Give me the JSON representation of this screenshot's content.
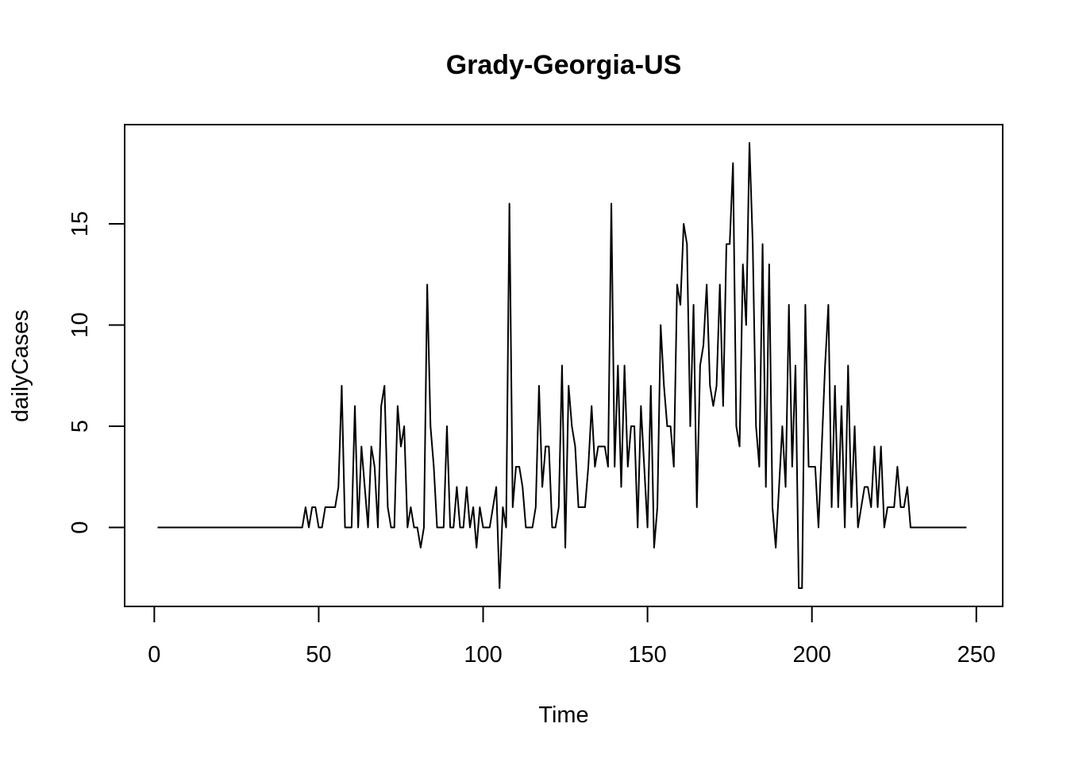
{
  "chart_data": {
    "type": "line",
    "title": "Grady-Georgia-US",
    "xlabel": "Time",
    "ylabel": "dailyCases",
    "xlim": [
      1,
      248
    ],
    "ylim": [
      -3,
      19
    ],
    "x_ticks": [
      0,
      50,
      100,
      150,
      200,
      250
    ],
    "y_ticks": [
      0,
      5,
      10,
      15
    ],
    "grid": false,
    "legend": "none",
    "x_start": 1,
    "values": [
      0,
      0,
      0,
      0,
      0,
      0,
      0,
      0,
      0,
      0,
      0,
      0,
      0,
      0,
      0,
      0,
      0,
      0,
      0,
      0,
      0,
      0,
      0,
      0,
      0,
      0,
      0,
      0,
      0,
      0,
      0,
      0,
      0,
      0,
      0,
      0,
      0,
      0,
      0,
      0,
      0,
      0,
      0,
      0,
      0,
      1,
      0,
      1,
      1,
      0,
      0,
      1,
      1,
      1,
      1,
      2,
      7,
      0,
      0,
      0,
      6,
      0,
      4,
      2,
      0,
      4,
      3,
      0,
      6,
      7,
      1,
      0,
      0,
      6,
      4,
      5,
      0,
      1,
      0,
      0,
      -1,
      0,
      12,
      5,
      3,
      0,
      0,
      0,
      5,
      0,
      0,
      2,
      0,
      0,
      2,
      0,
      1,
      -1,
      1,
      0,
      0,
      0,
      1,
      2,
      -3,
      1,
      0,
      16,
      1,
      3,
      3,
      2,
      0,
      0,
      0,
      1,
      7,
      2,
      4,
      4,
      0,
      0,
      1,
      8,
      -1,
      7,
      5,
      4,
      1,
      1,
      1,
      3,
      6,
      3,
      4,
      4,
      4,
      3,
      16,
      3,
      8,
      2,
      8,
      3,
      5,
      5,
      0,
      6,
      3,
      0,
      7,
      -1,
      1,
      10,
      7,
      5,
      5,
      3,
      12,
      11,
      15,
      14,
      5,
      11,
      1,
      8,
      9,
      12,
      7,
      6,
      7,
      12,
      6,
      14,
      14,
      18,
      5,
      4,
      13,
      10,
      19,
      14,
      5,
      3,
      14,
      2,
      13,
      1,
      -1,
      2,
      5,
      2,
      11,
      3,
      8,
      -3,
      -3,
      11,
      3,
      3,
      3,
      0,
      4,
      8,
      11,
      1,
      7,
      1,
      6,
      0,
      8,
      1,
      5,
      0,
      1,
      2,
      2,
      1,
      4,
      1,
      4,
      0,
      1,
      1,
      1,
      3,
      1,
      1,
      2,
      0,
      0,
      0,
      0,
      0,
      0,
      0,
      0,
      0,
      0,
      0,
      0,
      0,
      0,
      0,
      0,
      0,
      0
    ]
  }
}
